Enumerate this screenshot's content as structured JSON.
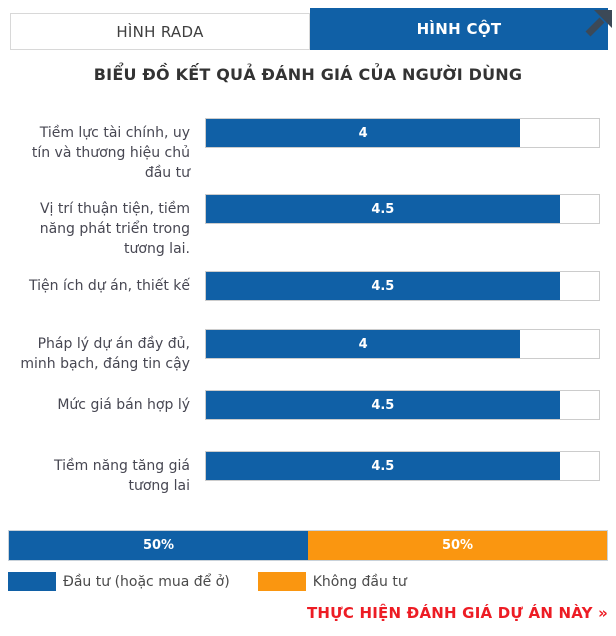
{
  "tabs": {
    "radar_label": "HÌNH RADA",
    "column_label": "HÌNH CỘT",
    "active": "HÌNH CỘT"
  },
  "title": "BIỂU ĐỒ KẾT QUẢ ĐÁNH GIÁ CỦA NGƯỜI DÙNG",
  "chart_data": [
    {
      "type": "bar",
      "orientation": "horizontal",
      "title": "BIỂU ĐỒ KẾT QUẢ ĐÁNH GIÁ CỦA NGƯỜI DÙNG",
      "categories": [
        "Tiềm lực tài chính, uy tín và thương hiệu chủ đầu tư",
        "Vị trí thuận tiện, tiềm năng phát triển trong tương lai.",
        "Tiện ích dự án, thiết kế",
        "Pháp lý dự án đầy đủ, minh bạch, đáng tin cậy",
        "Mức giá bán hợp lý",
        "Tiềm năng tăng giá tương lai"
      ],
      "values": [
        4,
        4.5,
        4.5,
        4,
        4.5,
        4.5
      ],
      "display_values": [
        "4",
        "4.5",
        "4.5",
        "4",
        "4.5",
        "4.5"
      ],
      "value_range": [
        0,
        5
      ],
      "bar_color": "#1060a6",
      "grid": false,
      "legend_position": "none"
    },
    {
      "type": "bar",
      "subtype": "stacked-percentage",
      "segments": [
        {
          "label": "Đầu tư (hoặc mua để ở)",
          "value": 50,
          "display": "50%",
          "color": "#1060a6"
        },
        {
          "label": "Không đầu tư",
          "value": 50,
          "display": "50%",
          "color": "#fa9610"
        }
      ],
      "legend_position": "bottom-left"
    }
  ],
  "rows": [
    {
      "label": "Tiềm lực tài chính, uy\ntín và thương hiệu chủ\nđầu tư"
    },
    {
      "label": "Vị trí thuận tiện, tiềm\nnăng phát triển trong\ntương lai."
    },
    {
      "label": "Tiện ích dự án, thiết kế"
    },
    {
      "label": "Pháp lý dự án đầy đủ,\nminh bạch, đáng tin cậy"
    },
    {
      "label": "Mức giá bán hợp lý"
    },
    {
      "label": "Tiềm năng tăng giá\ntương lai"
    }
  ],
  "legend": {
    "items": [
      {
        "label": "Đầu tư (hoặc mua để ở)",
        "color": "#1060a6"
      },
      {
        "label": "Không đầu tư",
        "color": "#fa9610"
      }
    ]
  },
  "footer": {
    "link_label": "THỰC HIỆN ĐÁNH GIÁ DỰ ÁN NÀY »",
    "link_color": "#ed1c24"
  },
  "icons": {
    "top_right": "diagonal-expand-arrow",
    "arrow_color": "#3c4957"
  }
}
